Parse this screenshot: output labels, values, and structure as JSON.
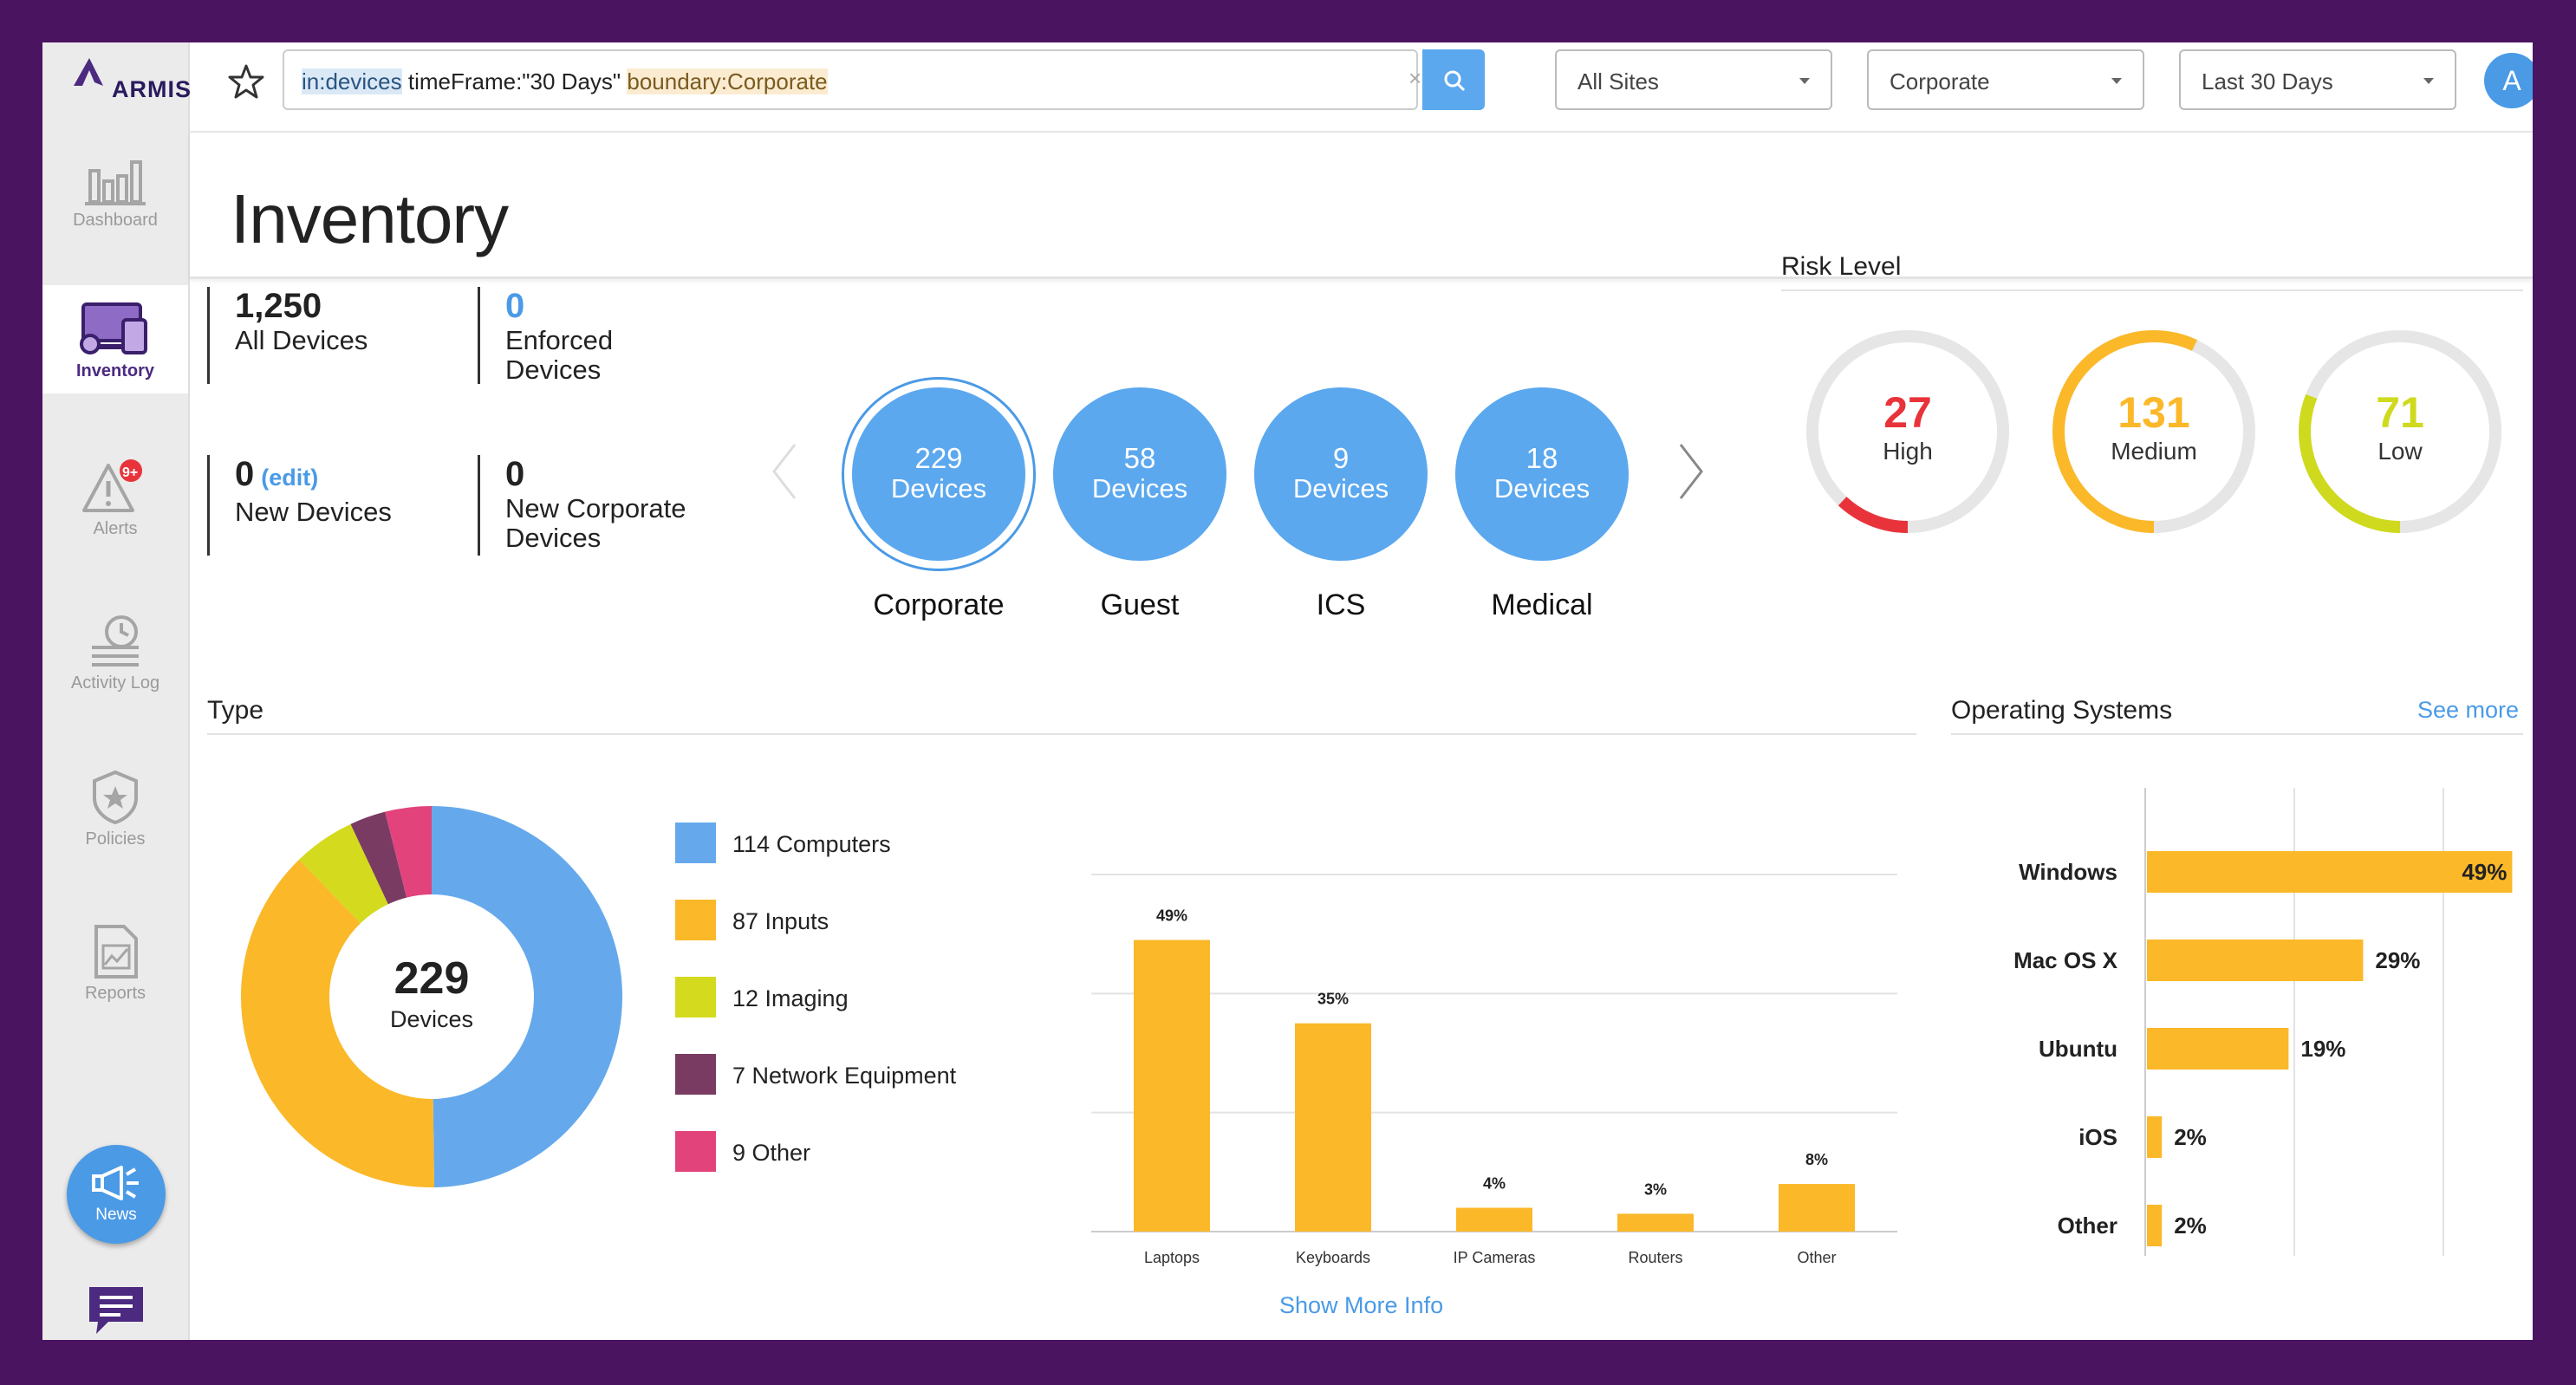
{
  "brand": {
    "name": "ARMIS"
  },
  "sidebar": {
    "items": [
      {
        "label": "Dashboard"
      },
      {
        "label": "Inventory"
      },
      {
        "label": "Alerts",
        "badge": "9+"
      },
      {
        "label": "Activity Log"
      },
      {
        "label": "Policies"
      },
      {
        "label": "Reports"
      }
    ],
    "news_label": "News"
  },
  "topbar": {
    "query_part1": "in:devices",
    "query_part2": " timeFrame:\"30 Days\" ",
    "query_part3": "boundary:Corporate",
    "clear_glyph": "×",
    "sites_value": "All Sites",
    "boundary_value": "Corporate",
    "timeframe_value": "Last 30 Days",
    "avatar_letter": "A"
  },
  "page": {
    "title": "Inventory"
  },
  "stats": {
    "all_devices": {
      "value": "1,250",
      "label": "All Devices"
    },
    "enforced": {
      "value": "0",
      "label1": "Enforced",
      "label2": "Devices"
    },
    "new_devices": {
      "value": "0",
      "edit": "(edit)",
      "label": "New Devices"
    },
    "new_corporate": {
      "value": "0",
      "label1": "New Corporate",
      "label2": "Devices"
    }
  },
  "segments": [
    {
      "count": "229",
      "unit": "Devices",
      "name": "Corporate",
      "selected": true
    },
    {
      "count": "58",
      "unit": "Devices",
      "name": "Guest"
    },
    {
      "count": "9",
      "unit": "Devices",
      "name": "ICS"
    },
    {
      "count": "18",
      "unit": "Devices",
      "name": "Medical"
    }
  ],
  "risk": {
    "title": "Risk Level",
    "levels": [
      {
        "value": "27",
        "label": "High",
        "color": "#e8333b",
        "fraction": 0.12
      },
      {
        "value": "131",
        "label": "Medium",
        "color": "#fbb829",
        "fraction": 0.57
      },
      {
        "value": "71",
        "label": "Low",
        "color": "#cfda1e",
        "fraction": 0.31
      }
    ]
  },
  "type_section": {
    "title": "Type",
    "center_value": "229",
    "center_label": "Devices",
    "show_more": "Show More Info"
  },
  "os_section": {
    "title": "Operating Systems",
    "see_more": "See more"
  },
  "chart_data": [
    {
      "type": "pie",
      "title": "Type",
      "categories": [
        "Computers",
        "Inputs",
        "Imaging",
        "Network Equipment",
        "Other"
      ],
      "values": [
        114,
        87,
        12,
        7,
        9
      ],
      "legend": [
        "114 Computers",
        "87 Inputs",
        "12 Imaging",
        "7 Network Equipment",
        "9 Other"
      ],
      "colors": [
        "#65a9ec",
        "#fbb829",
        "#d4da1e",
        "#7a3b63",
        "#e2437b"
      ],
      "center": "229 Devices"
    },
    {
      "type": "bar",
      "categories": [
        "Laptops",
        "Keyboards",
        "IP Cameras",
        "Routers",
        "Other"
      ],
      "values": [
        49,
        35,
        4,
        3,
        8
      ],
      "labels": [
        "49%",
        "35%",
        "4%",
        "3%",
        "8%"
      ],
      "ylim": [
        0,
        60
      ],
      "color": "#fbb829",
      "grid": true
    },
    {
      "type": "bar",
      "orientation": "horizontal",
      "title": "Operating Systems",
      "categories": [
        "Windows",
        "Mac OS X",
        "Ubuntu",
        "iOS",
        "Other"
      ],
      "values": [
        49,
        29,
        19,
        2,
        2
      ],
      "labels": [
        "49%",
        "29%",
        "19%",
        "2%",
        "2%"
      ],
      "xlim": [
        0,
        50
      ],
      "color": "#fbb829",
      "grid": true
    }
  ]
}
